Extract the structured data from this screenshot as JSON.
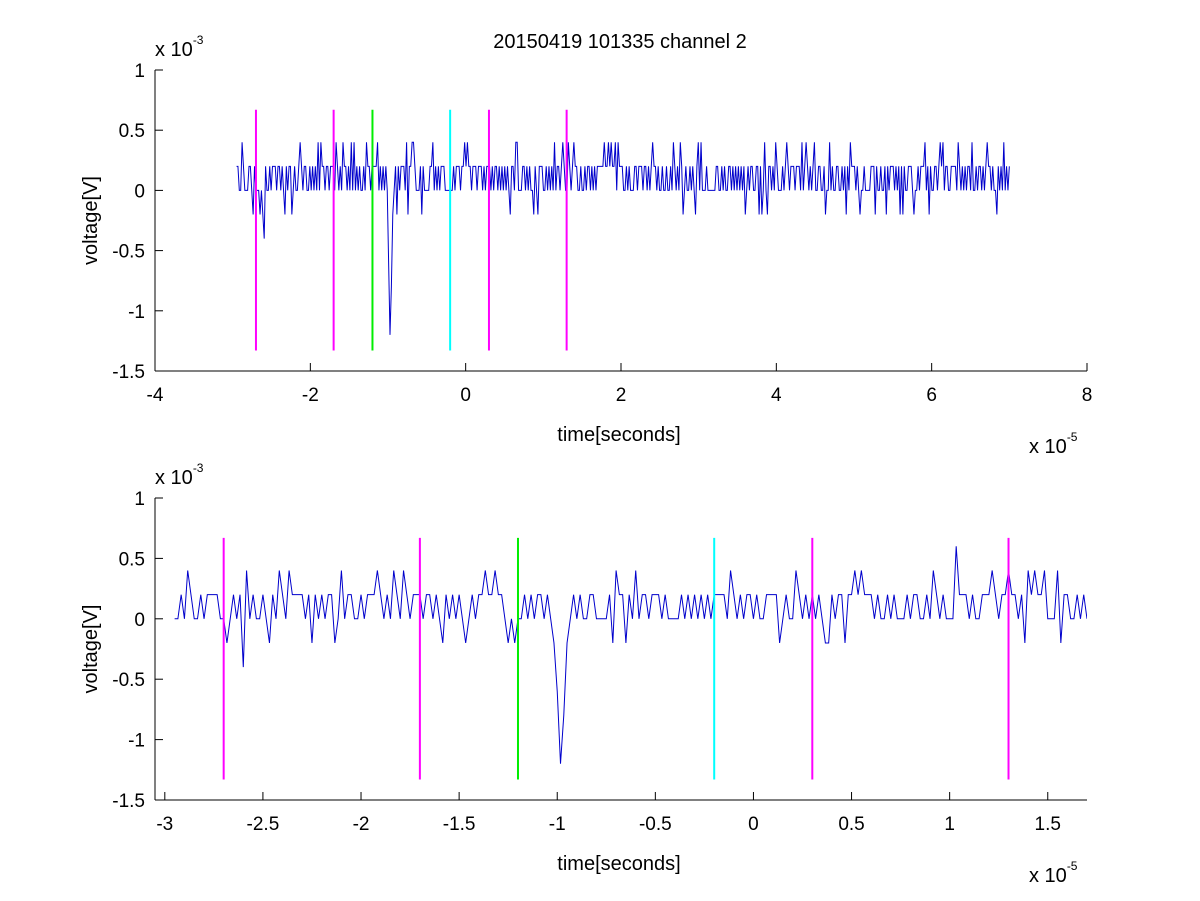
{
  "figure": {
    "title": "20150419 101335 channel 2"
  },
  "chart_data": [
    {
      "type": "line",
      "title": "20150419 101335 channel 2",
      "xlabel": "time[seconds]",
      "ylabel": "voltage[V]",
      "x_scale_label": "x 10",
      "x_scale_exponent": "-5",
      "y_scale_label": "x 10",
      "y_scale_exponent": "-3",
      "xlim": [
        -4,
        8
      ],
      "ylim": [
        -1.5,
        1
      ],
      "x_ticks": [
        -4,
        -2,
        0,
        2,
        4,
        6,
        8
      ],
      "x_tick_labels": [
        "-4",
        "-2",
        "0",
        "2",
        "4",
        "6",
        "8"
      ],
      "y_ticks": [
        -1.5,
        -1,
        -0.5,
        0,
        0.5,
        1
      ],
      "y_tick_labels": [
        "-1.5",
        "-1",
        "-0.5",
        "0",
        "0.5",
        "1"
      ],
      "grid": false,
      "signal": {
        "color": "#0000cc",
        "x_start": -2.95,
        "x_end": 7.0,
        "baseline_values": [
          0,
          0.2,
          0.4,
          -0.2
        ],
        "notable_points": [
          {
            "x": -2.6,
            "y": -0.4
          },
          {
            "x": -1.0,
            "y": -0.6
          },
          {
            "x": -0.98,
            "y": -1.2
          }
        ]
      },
      "markers": [
        {
          "x": -2.7,
          "y_min": -1.33,
          "y_max": 0.67,
          "color": "#ff00ff"
        },
        {
          "x": -1.7,
          "y_min": -1.33,
          "y_max": 0.67,
          "color": "#ff00ff"
        },
        {
          "x": -1.2,
          "y_min": -1.33,
          "y_max": 0.67,
          "color": "#00ee00"
        },
        {
          "x": -0.2,
          "y_min": -1.33,
          "y_max": 0.67,
          "color": "#00ffff"
        },
        {
          "x": 0.3,
          "y_min": -1.33,
          "y_max": 0.67,
          "color": "#ff00ff"
        },
        {
          "x": 1.3,
          "y_min": -1.33,
          "y_max": 0.67,
          "color": "#ff00ff"
        }
      ]
    },
    {
      "type": "line",
      "title": "",
      "xlabel": "time[seconds]",
      "ylabel": "voltage[V]",
      "x_scale_label": "x 10",
      "x_scale_exponent": "-5",
      "y_scale_label": "x 10",
      "y_scale_exponent": "-3",
      "xlim": [
        -3.05,
        1.7
      ],
      "ylim": [
        -1.5,
        1
      ],
      "x_ticks": [
        -3,
        -2.5,
        -2,
        -1.5,
        -1,
        -0.5,
        0,
        0.5,
        1,
        1.5
      ],
      "x_tick_labels": [
        "-3",
        "-2.5",
        "-2",
        "-1.5",
        "-1",
        "-0.5",
        "0",
        "0.5",
        "1",
        "1.5"
      ],
      "y_ticks": [
        -1.5,
        -1,
        -0.5,
        0,
        0.5,
        1
      ],
      "y_tick_labels": [
        "-1.5",
        "-1",
        "-0.5",
        "0",
        "0.5",
        "1"
      ],
      "grid": false,
      "signal": {
        "color": "#0000cc",
        "x_start": -2.95,
        "x_end": 1.7,
        "baseline_values": [
          0,
          0.2,
          0.4,
          -0.2
        ],
        "notable_points": [
          {
            "x": -2.6,
            "y": -0.4
          },
          {
            "x": -1.0,
            "y": -0.4
          },
          {
            "x": -0.98,
            "y": -1.2
          },
          {
            "x": 1.03,
            "y": 0.6
          }
        ]
      },
      "markers": [
        {
          "x": -2.7,
          "y_min": -1.33,
          "y_max": 0.67,
          "color": "#ff00ff"
        },
        {
          "x": -1.7,
          "y_min": -1.33,
          "y_max": 0.67,
          "color": "#ff00ff"
        },
        {
          "x": -1.2,
          "y_min": -1.33,
          "y_max": 0.67,
          "color": "#00ee00"
        },
        {
          "x": -0.2,
          "y_min": -1.33,
          "y_max": 0.67,
          "color": "#00ffff"
        },
        {
          "x": 0.3,
          "y_min": -1.33,
          "y_max": 0.67,
          "color": "#ff00ff"
        },
        {
          "x": 1.3,
          "y_min": -1.33,
          "y_max": 0.67,
          "color": "#ff00ff"
        }
      ]
    }
  ]
}
